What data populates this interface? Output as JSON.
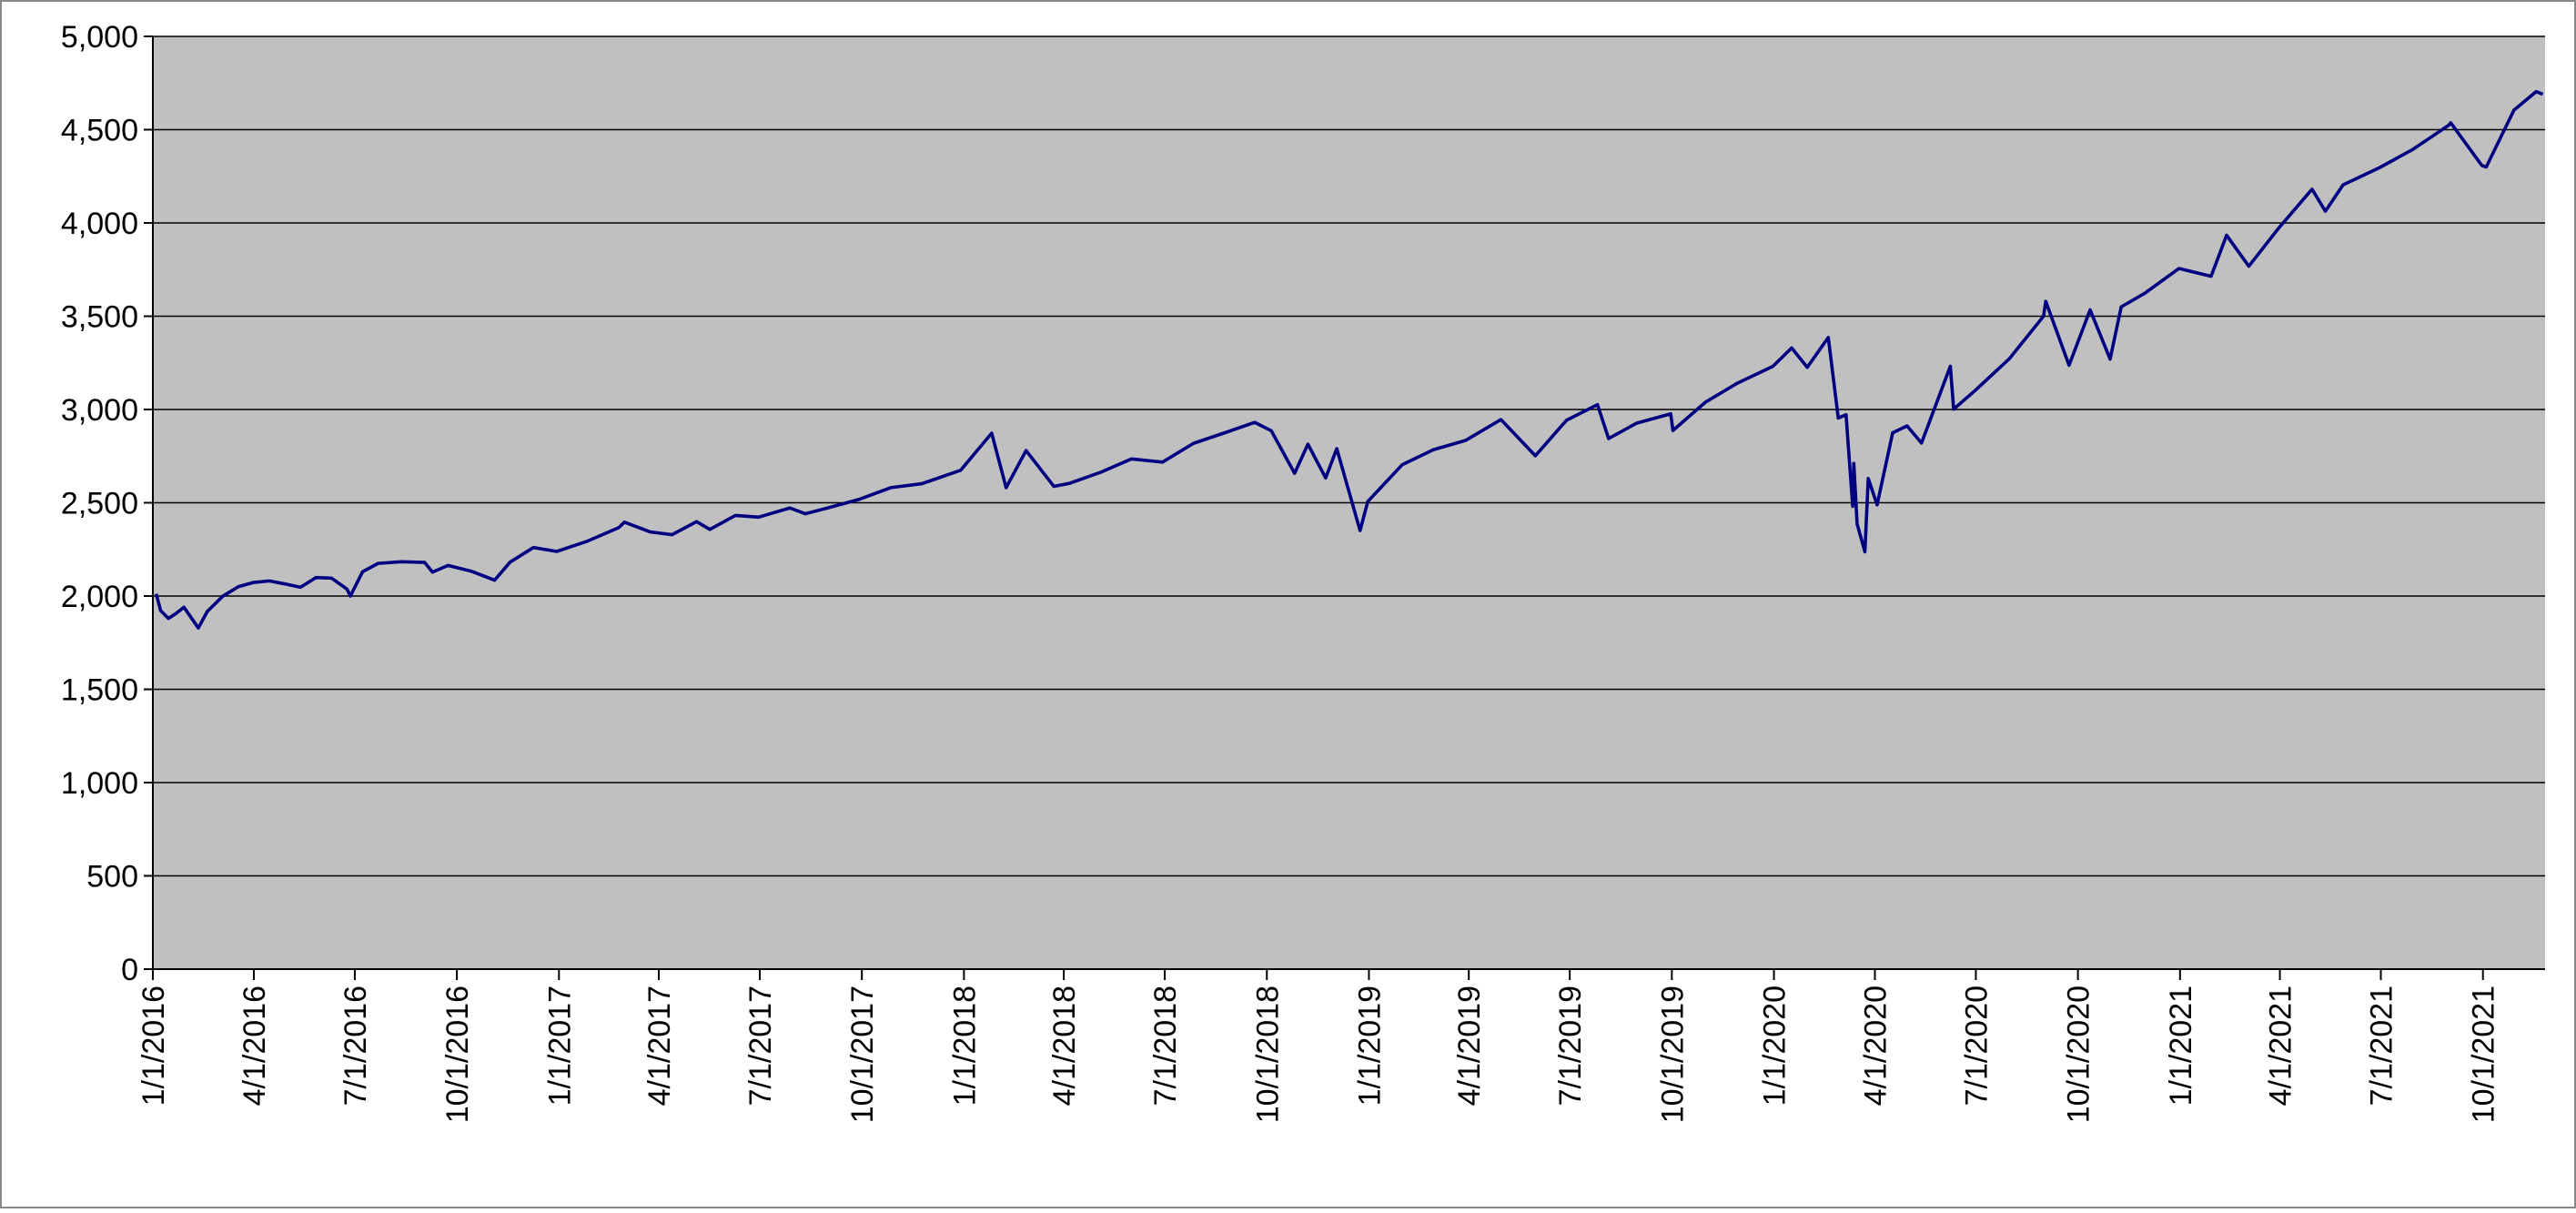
{
  "chart_data": {
    "type": "line",
    "color": "#000080",
    "grid": true,
    "x": [
      "1/4/2016",
      "1/8/2016",
      "1/15/2016",
      "1/22/2016",
      "1/29/2016",
      "2/5/2016",
      "2/11/2016",
      "2/19/2016",
      "3/4/2016",
      "3/18/2016",
      "4/1/2016",
      "4/15/2016",
      "4/29/2016",
      "5/13/2016",
      "5/27/2016",
      "6/10/2016",
      "6/24/2016",
      "6/27/2016",
      "7/8/2016",
      "7/22/2016",
      "8/12/2016",
      "9/2/2016",
      "9/9/2016",
      "9/23/2016",
      "10/14/2016",
      "11/4/2016",
      "11/18/2016",
      "12/9/2016",
      "12/30/2016",
      "1/27/2017",
      "2/24/2017",
      "3/1/2017",
      "3/24/2017",
      "4/13/2017",
      "5/5/2017",
      "5/17/2017",
      "6/9/2017",
      "6/30/2017",
      "7/28/2017",
      "8/11/2017",
      "8/31/2017",
      "9/29/2017",
      "10/27/2017",
      "11/24/2017",
      "12/29/2017",
      "1/26/2018",
      "2/8/2018",
      "2/26/2018",
      "3/23/2018",
      "4/6/2018",
      "5/4/2018",
      "6/1/2018",
      "6/29/2018",
      "7/27/2018",
      "8/24/2018",
      "9/20/2018",
      "10/5/2018",
      "10/26/2018",
      "11/7/2018",
      "11/23/2018",
      "12/3/2018",
      "12/24/2018",
      "12/31/2018",
      "1/31/2019",
      "2/28/2019",
      "3/29/2019",
      "4/30/2019",
      "5/31/2019",
      "6/28/2019",
      "7/26/2019",
      "8/5/2019",
      "8/30/2019",
      "9/30/2019",
      "10/2/2019",
      "10/31/2019",
      "11/29/2019",
      "12/31/2019",
      "1/17/2020",
      "1/31/2020",
      "2/19/2020",
      "2/28/2020",
      "3/6/2020",
      "3/12/2020",
      "3/13/2020",
      "3/16/2020",
      "3/23/2020",
      "3/26/2020",
      "4/3/2020",
      "4/17/2020",
      "4/30/2020",
      "5/13/2020",
      "6/8/2020",
      "6/11/2020",
      "6/30/2020",
      "7/31/2020",
      "8/31/2020",
      "9/2/2020",
      "9/23/2020",
      "10/12/2020",
      "10/30/2020",
      "11/9/2020",
      "11/30/2020",
      "12/31/2020",
      "1/29/2021",
      "2/12/2021",
      "3/4/2021",
      "3/31/2021",
      "4/30/2021",
      "5/12/2021",
      "5/28/2021",
      "6/30/2021",
      "7/30/2021",
      "8/31/2021",
      "9/2/2021",
      "9/30/2021",
      "10/4/2021",
      "10/29/2021",
      "11/18/2021",
      "11/24/2021"
    ],
    "values": [
      2012,
      1922,
      1880,
      1907,
      1940,
      1880,
      1829,
      1917,
      1999,
      2050,
      2073,
      2081,
      2065,
      2047,
      2099,
      2096,
      2037,
      2000,
      2130,
      2175,
      2184,
      2180,
      2128,
      2164,
      2133,
      2085,
      2182,
      2260,
      2239,
      2295,
      2367,
      2396,
      2344,
      2329,
      2399,
      2357,
      2432,
      2423,
      2472,
      2441,
      2472,
      2519,
      2581,
      2602,
      2674,
      2873,
      2581,
      2780,
      2588,
      2604,
      2663,
      2735,
      2718,
      2819,
      2875,
      2931,
      2886,
      2658,
      2814,
      2633,
      2790,
      2351,
      2507,
      2704,
      2784,
      2834,
      2946,
      2752,
      2942,
      3026,
      2844,
      2926,
      2977,
      2887,
      3038,
      3141,
      3231,
      3330,
      3226,
      3386,
      2954,
      2972,
      2481,
      2711,
      2386,
      2237,
      2630,
      2489,
      2875,
      2912,
      2820,
      3232,
      3002,
      3100,
      3271,
      3500,
      3580,
      3237,
      3534,
      3270,
      3550,
      3622,
      3756,
      3714,
      3934,
      3768,
      3973,
      4181,
      4063,
      4204,
      4297,
      4395,
      4523,
      4537,
      4308,
      4300,
      4605,
      4704,
      4690
    ],
    "xlim": [
      "1/1/2016",
      "11/26/2021"
    ],
    "xticks": [
      "1/1/2016",
      "4/1/2016",
      "7/1/2016",
      "10/1/2016",
      "1/1/2017",
      "4/1/2017",
      "7/1/2017",
      "10/1/2017",
      "1/1/2018",
      "4/1/2018",
      "7/1/2018",
      "10/1/2018",
      "1/1/2019",
      "4/1/2019",
      "7/1/2019",
      "10/1/2019",
      "1/1/2020",
      "4/1/2020",
      "7/1/2020",
      "10/1/2020",
      "1/1/2021",
      "4/1/2021",
      "7/1/2021",
      "10/1/2021"
    ],
    "ylim": [
      0,
      5000
    ],
    "yticks": [
      0,
      500,
      {
        "value": 1000,
        "label": "1,000"
      },
      {
        "value": 1500,
        "label": "1,500"
      },
      {
        "value": 2000,
        "label": "2,000"
      },
      {
        "value": 2500,
        "label": "2,500"
      },
      {
        "value": 3000,
        "label": "3,000"
      },
      {
        "value": 3500,
        "label": "3,500"
      },
      {
        "value": 4000,
        "label": "4,000"
      },
      {
        "value": 4500,
        "label": "4,500"
      },
      {
        "value": 5000,
        "label": "5,000"
      }
    ]
  }
}
